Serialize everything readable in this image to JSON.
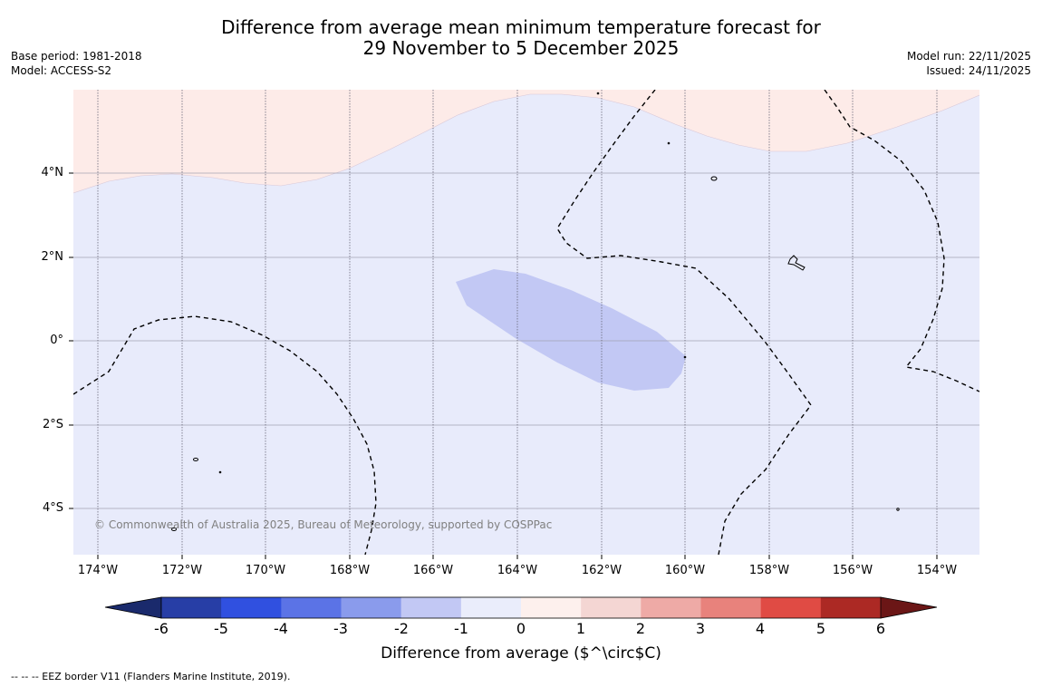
{
  "title": {
    "line1": "Difference from average mean minimum temperature forecast for",
    "line2": "29 November to 5 December 2025"
  },
  "meta_left": {
    "base_period": "Base period: 1981-2018",
    "model": "Model: ACCESS-S2"
  },
  "meta_right": {
    "model_run": "Model run: 22/11/2025",
    "issued": "Issued: 24/11/2025"
  },
  "map": {
    "lat_labels": [
      "4°N",
      "2°N",
      "0°",
      "2°S",
      "4°S"
    ],
    "lon_labels": [
      "174°W",
      "172°W",
      "170°W",
      "168°W",
      "166°W",
      "164°W",
      "162°W",
      "160°W",
      "158°W",
      "156°W",
      "154°W"
    ],
    "copyright": "© Commonwealth of Australia 2025, Bureau of Meteorology, supported by COSPPac",
    "colors": {
      "ocean_neutral_cool": "#e8ebfb",
      "warm_band": "#fdebe8",
      "cool_patch": "#c2c8f4"
    }
  },
  "colorbar": {
    "tick_labels": [
      "-6",
      "-5",
      "-4",
      "-3",
      "-2",
      "-1",
      "0",
      "1",
      "2",
      "3",
      "4",
      "5",
      "6"
    ],
    "segment_colors": [
      "#273ea6",
      "#3050e0",
      "#5b73e6",
      "#8a9bec",
      "#c2c8f4",
      "#eaedfb",
      "#fdf0ed",
      "#f4d6d3",
      "#eeaaa6",
      "#e8827c",
      "#e04b44",
      "#ac2924"
    ],
    "low_extend_color": "#1a2a6c",
    "high_extend_color": "#6b1616",
    "title": "Difference from average ($^\\circ$C)"
  },
  "footnote": "-- -- -- EEZ border V11 (Flanders Marine Institute, 2019)."
}
